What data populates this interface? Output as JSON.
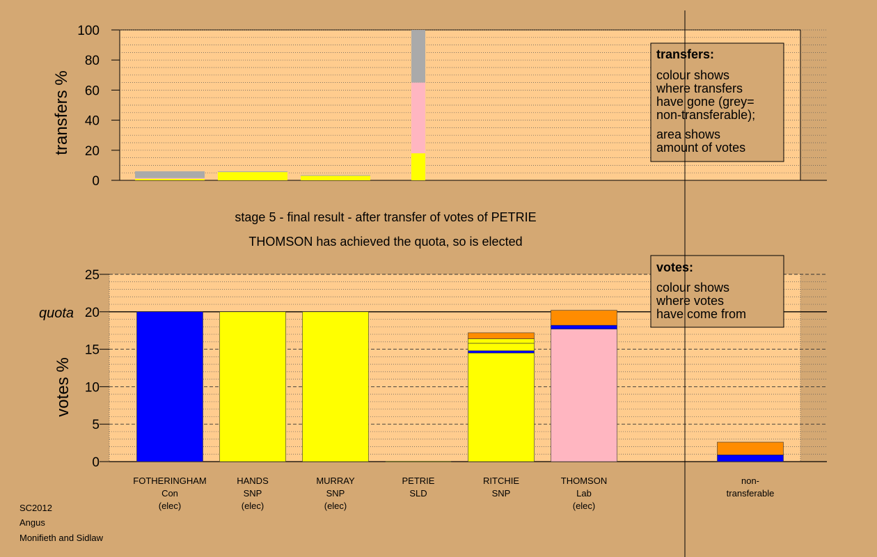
{
  "chart_data": [
    {
      "type": "bar",
      "stacked": true,
      "ylabel": "transfers %",
      "ylim": [
        0,
        100
      ],
      "yticks": [
        "0",
        "20",
        "40",
        "60",
        "80",
        "100"
      ],
      "grid": "dotted horizontal lines every 5 units",
      "categories": [
        "FOTHERINGHAM",
        "HANDS",
        "MURRAY",
        "PETRIE",
        "RITCHIE",
        "THOMSON"
      ],
      "bars": [
        {
          "category": "FOTHERINGHAM",
          "segments": [
            {
              "color": "#ffff00",
              "value": 1.0
            },
            {
              "color": "#ffb6c1",
              "value": 0.5
            },
            {
              "color": "#aaaaaa",
              "value": 4.5
            }
          ]
        },
        {
          "category": "HANDS",
          "segments": [
            {
              "color": "#ffff00",
              "value": 5.5
            },
            {
              "color": "#aaaaaa",
              "value": 0.5
            }
          ]
        },
        {
          "category": "MURRAY",
          "segments": [
            {
              "color": "#ffff00",
              "value": 3.0
            },
            {
              "color": "#aaaaaa",
              "value": 0.5
            }
          ]
        },
        {
          "category": "PETRIE",
          "segments": [
            {
              "color": "#ffff00",
              "value": 18
            },
            {
              "color": "#ffb6c1",
              "value": 47
            },
            {
              "color": "#aaaaaa",
              "value": 35
            }
          ]
        }
      ],
      "legend": {
        "title": "transfers:",
        "lines": [
          "colour shows",
          "where transfers",
          "have gone (grey=",
          "non-transferable);"
        ],
        "lines2": [
          "area shows",
          "amount of votes"
        ]
      }
    },
    {
      "type": "bar",
      "stacked": true,
      "ylabel": "votes %",
      "ylim": [
        0,
        25
      ],
      "yticks": [
        "0",
        "5",
        "10",
        "15",
        "20",
        "25"
      ],
      "quota": {
        "value": 20,
        "label": "quota"
      },
      "grid": "dotted lines every 1 unit, dashed lines every 5 units",
      "categories": [
        {
          "lines": [
            "FOTHERINGHAM",
            "Con",
            "(elec)"
          ]
        },
        {
          "lines": [
            "HANDS",
            "SNP",
            "(elec)"
          ]
        },
        {
          "lines": [
            "MURRAY",
            "SNP",
            "(elec)"
          ]
        },
        {
          "lines": [
            "PETRIE",
            "SLD"
          ]
        },
        {
          "lines": [
            "RITCHIE",
            "SNP"
          ]
        },
        {
          "lines": [
            "THOMSON",
            "Lab",
            "(elec)"
          ]
        },
        {
          "lines": []
        },
        {
          "lines": [
            "non-",
            "transferable"
          ]
        }
      ],
      "bars": [
        {
          "category": "FOTHERINGHAM",
          "segments": [
            {
              "color": "#0000ff",
              "value": 20.0
            }
          ]
        },
        {
          "category": "HANDS",
          "segments": [
            {
              "color": "#ffff00",
              "value": 20.0
            }
          ]
        },
        {
          "category": "MURRAY",
          "segments": [
            {
              "color": "#ffff00",
              "value": 20.0
            }
          ]
        },
        {
          "category": "PETRIE",
          "segments": [
            {
              "color": "#ffff00",
              "value": 0.05
            }
          ]
        },
        {
          "category": "RITCHIE",
          "segments": [
            {
              "color": "#ffff00",
              "value": 14.5
            },
            {
              "color": "#0000ff",
              "value": 0.3
            },
            {
              "color": "#ffff00",
              "value": 1.0
            },
            {
              "color": "#ffff00",
              "value": 0.6
            },
            {
              "color": "#ff8c00",
              "value": 0.8
            }
          ]
        },
        {
          "category": "THOMSON",
          "segments": [
            {
              "color": "#ffb6c1",
              "value": 17.7
            },
            {
              "color": "#0000ff",
              "value": 0.5
            },
            {
              "color": "#ff8c00",
              "value": 2.0
            }
          ]
        },
        {
          "category": "",
          "segments": []
        },
        {
          "category": "non-transferable",
          "segments": [
            {
              "color": "#0000ff",
              "value": 0.9
            },
            {
              "color": "#ff8c00",
              "value": 1.7
            }
          ]
        }
      ],
      "legend": {
        "title": "votes:",
        "lines": [
          "colour shows",
          "where votes",
          "have come from"
        ]
      }
    }
  ],
  "captions": {
    "stage": "stage 5 - final result - after transfer of votes of PETRIE",
    "result": "THOMSON has achieved the quota, so is elected"
  },
  "footer": {
    "lines": [
      "SC2012",
      "Angus",
      "Monifieth and Sidlaw"
    ]
  },
  "colors": {
    "background": "#d4a873",
    "plot_background": "#ffcc8e",
    "legend_background": "#d4a873"
  }
}
